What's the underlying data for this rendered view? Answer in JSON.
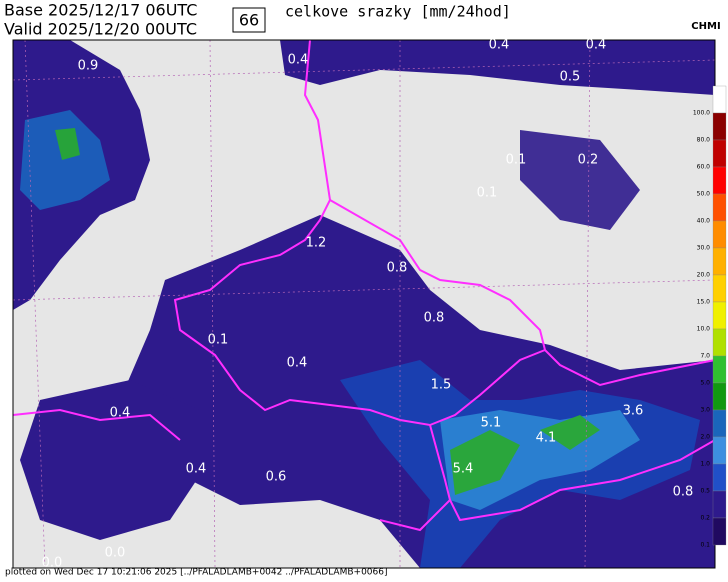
{
  "header": {
    "base": "Base 2025/12/17 06UTC",
    "valid": "Valid 2025/12/20 00UTC",
    "step": "66",
    "title": "celkove srazky [mm/24hod]",
    "logo": "CHMI"
  },
  "map_labels": [
    "0.9",
    "0.4",
    "0.4",
    "0.4",
    "0.5",
    "0.1",
    "0.2",
    "0.1",
    "1.2",
    "0.8",
    "0.8",
    "0.1",
    "0.4",
    "1.5",
    "0.4",
    "5.1",
    "4.1",
    "3.6",
    "5.4",
    "0.4",
    "0.6",
    "0.8",
    "0.0",
    "0.0"
  ],
  "legend": {
    "labels": [
      "100.0",
      "80.0",
      "60.0",
      "50.0",
      "40.0",
      "30.0",
      "20.0",
      "15.0",
      "10.0",
      "7.0",
      "5.0",
      "3.0",
      "2.0",
      "1.0",
      "0.5",
      "0.2",
      "0.1"
    ]
  },
  "footer": "plotted on Wed Dec 17 10:21:06 2025 [../PFALADLAMB+0042 ../PFALADLAMB+0066]"
}
